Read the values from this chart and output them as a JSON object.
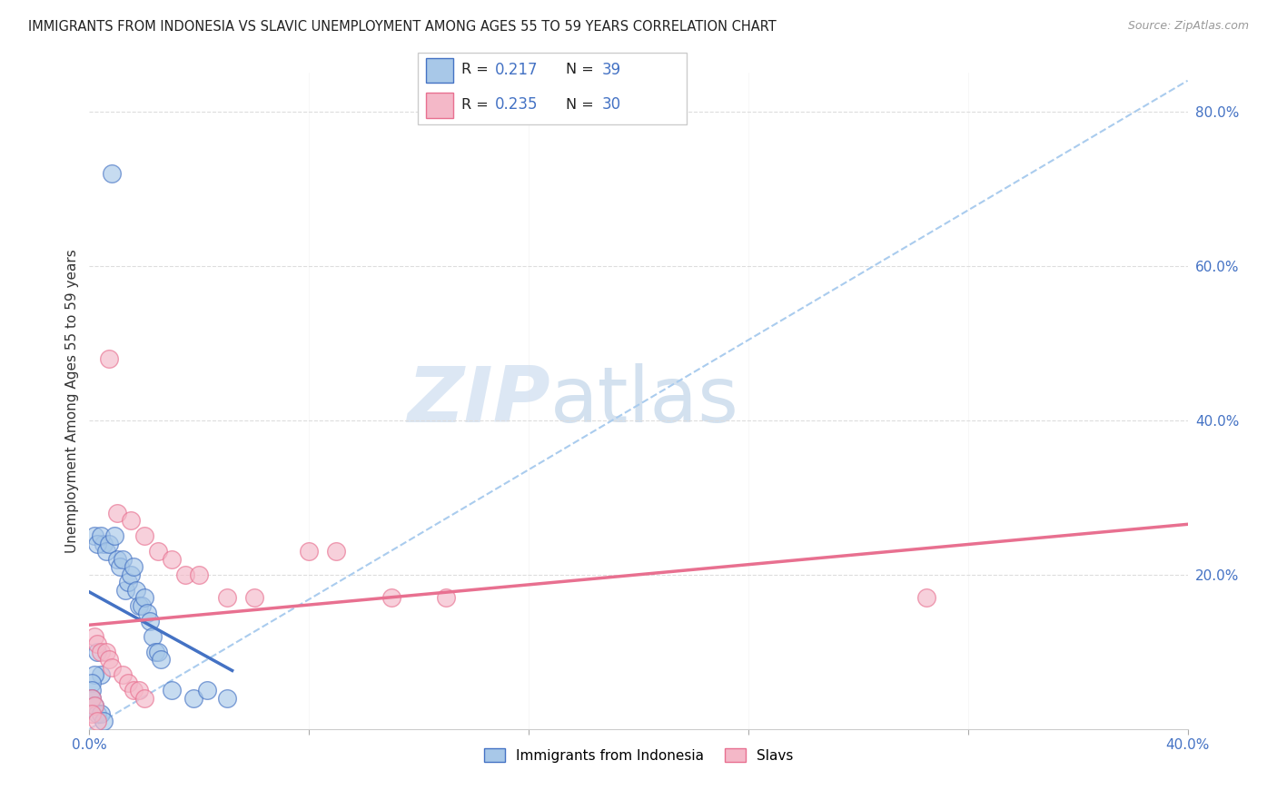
{
  "title": "IMMIGRANTS FROM INDONESIA VS SLAVIC UNEMPLOYMENT AMONG AGES 55 TO 59 YEARS CORRELATION CHART",
  "source": "Source: ZipAtlas.com",
  "ylabel": "Unemployment Among Ages 55 to 59 years",
  "xlim": [
    0.0,
    0.4
  ],
  "ylim": [
    0.0,
    0.85
  ],
  "color_blue": "#a8c8e8",
  "color_pink": "#f4b8c8",
  "color_blue_line": "#4472c4",
  "color_pink_line": "#e87090",
  "color_dashed": "#aaccee",
  "watermark_zip": "ZIP",
  "watermark_atlas": "atlas",
  "legend_r1_val": "0.217",
  "legend_n1_val": "39",
  "legend_r2_val": "0.235",
  "legend_n2_val": "30",
  "blue_x": [
    0.008,
    0.002,
    0.005,
    0.003,
    0.004,
    0.006,
    0.007,
    0.009,
    0.01,
    0.011,
    0.012,
    0.013,
    0.014,
    0.015,
    0.016,
    0.017,
    0.018,
    0.019,
    0.02,
    0.021,
    0.022,
    0.023,
    0.024,
    0.025,
    0.026,
    0.003,
    0.004,
    0.002,
    0.001,
    0.001,
    0.03,
    0.038,
    0.043,
    0.05,
    0.001,
    0.002,
    0.003,
    0.004,
    0.005
  ],
  "blue_y": [
    0.72,
    0.25,
    0.24,
    0.24,
    0.25,
    0.23,
    0.24,
    0.25,
    0.22,
    0.21,
    0.22,
    0.18,
    0.19,
    0.2,
    0.21,
    0.18,
    0.16,
    0.16,
    0.17,
    0.15,
    0.14,
    0.12,
    0.1,
    0.1,
    0.09,
    0.1,
    0.07,
    0.07,
    0.06,
    0.05,
    0.05,
    0.04,
    0.05,
    0.04,
    0.04,
    0.03,
    0.02,
    0.02,
    0.01
  ],
  "pink_x": [
    0.007,
    0.01,
    0.015,
    0.02,
    0.025,
    0.03,
    0.035,
    0.04,
    0.05,
    0.06,
    0.08,
    0.09,
    0.11,
    0.13,
    0.305,
    0.002,
    0.003,
    0.004,
    0.006,
    0.007,
    0.008,
    0.012,
    0.014,
    0.016,
    0.018,
    0.02,
    0.001,
    0.002,
    0.001,
    0.003
  ],
  "pink_y": [
    0.48,
    0.28,
    0.27,
    0.25,
    0.23,
    0.22,
    0.2,
    0.2,
    0.17,
    0.17,
    0.23,
    0.23,
    0.17,
    0.17,
    0.17,
    0.12,
    0.11,
    0.1,
    0.1,
    0.09,
    0.08,
    0.07,
    0.06,
    0.05,
    0.05,
    0.04,
    0.04,
    0.03,
    0.02,
    0.01
  ]
}
